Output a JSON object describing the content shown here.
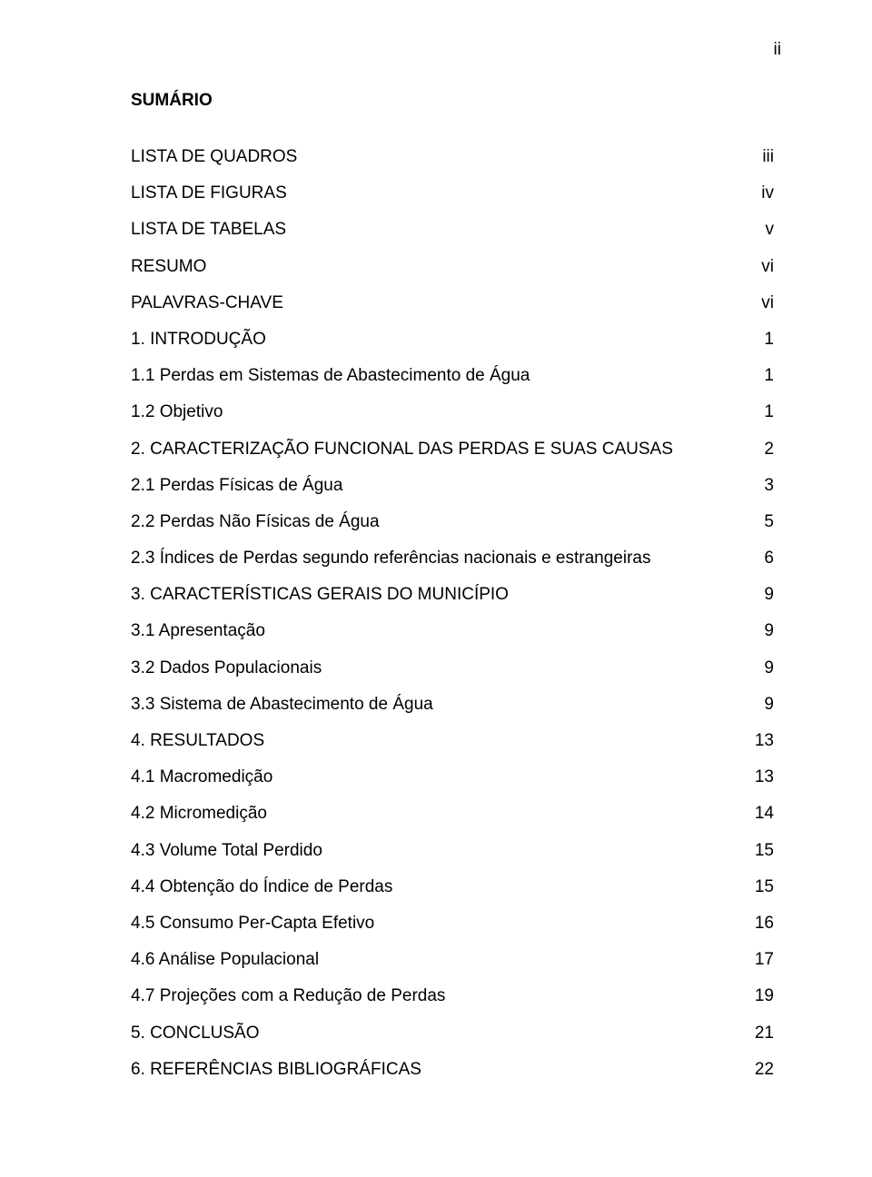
{
  "page_number_top": "ii",
  "title": "SUMÁRIO",
  "toc": [
    {
      "label": "LISTA DE QUADROS",
      "page": "iii"
    },
    {
      "label": "LISTA DE FIGURAS",
      "page": "iv"
    },
    {
      "label": "LISTA DE TABELAS",
      "page": "v"
    },
    {
      "label": "RESUMO",
      "page": "vi"
    },
    {
      "label": "PALAVRAS-CHAVE",
      "page": "vi"
    },
    {
      "label": "1. INTRODUÇÃO",
      "page": "1"
    },
    {
      "label": "1.1 Perdas em Sistemas de Abastecimento de Água",
      "page": "1"
    },
    {
      "label": "1.2 Objetivo",
      "page": "1"
    },
    {
      "label": "2. CARACTERIZAÇÃO FUNCIONAL DAS PERDAS E SUAS CAUSAS",
      "page": "2"
    },
    {
      "label": "2.1 Perdas Físicas de Água",
      "page": "3"
    },
    {
      "label": "2.2 Perdas Não Físicas de Água",
      "page": "5"
    },
    {
      "label": "2.3 Índices de Perdas segundo referências nacionais e estrangeiras",
      "page": "6"
    },
    {
      "label": "3. CARACTERÍSTICAS GERAIS DO MUNICÍPIO",
      "page": "9"
    },
    {
      "label": "3.1 Apresentação",
      "page": "9"
    },
    {
      "label": "3.2 Dados Populacionais",
      "page": "9"
    },
    {
      "label": "3.3 Sistema de Abastecimento de Água",
      "page": "9"
    },
    {
      "label": "4. RESULTADOS",
      "page": "13"
    },
    {
      "label": "4.1 Macromedição",
      "page": "13"
    },
    {
      "label": "4.2 Micromedição",
      "page": "14"
    },
    {
      "label": "4.3 Volume Total Perdido",
      "page": "15"
    },
    {
      "label": "4.4 Obtenção do Índice de Perdas",
      "page": "15"
    },
    {
      "label": "4.5 Consumo Per-Capta Efetivo",
      "page": "16"
    },
    {
      "label": "4.6 Análise Populacional",
      "page": "17"
    },
    {
      "label": "4.7 Projeções com a Redução de Perdas",
      "page": "19"
    },
    {
      "label": "5. CONCLUSÃO",
      "page": "21"
    },
    {
      "label": "6. REFERÊNCIAS BIBLIOGRÁFICAS",
      "page": "22"
    }
  ]
}
